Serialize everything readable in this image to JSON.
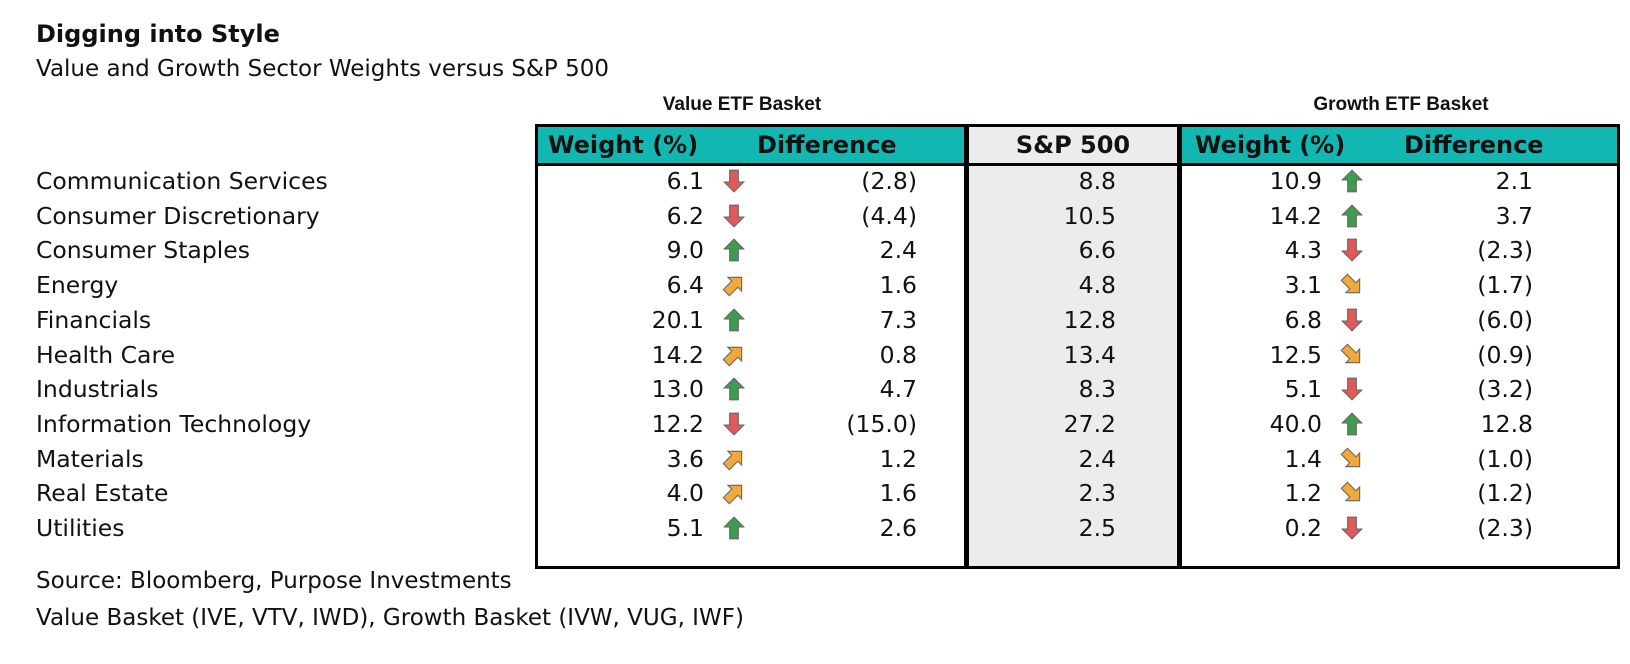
{
  "title": "Digging into Style",
  "subtitle": "Value and Growth Sector Weights versus S&P 500",
  "groups": {
    "value": "Value ETF Basket",
    "growth": "Growth ETF Basket"
  },
  "headers": {
    "value_weight": "Weight (%)",
    "value_diff": "Difference",
    "sp500": "S&P 500",
    "growth_weight": "Weight (%)",
    "growth_diff": "Difference"
  },
  "colors": {
    "header_teal": "#13b7b2",
    "sp_shade": "#ececec",
    "up": "#3f9b4e",
    "down": "#e05a5a",
    "diag": "#f2a93b"
  },
  "rows": [
    {
      "sector": "Communication Services",
      "v_weight": "6.1",
      "v_arrow": "down",
      "v_diff": "(2.8)",
      "sp": "8.8",
      "g_weight": "10.9",
      "g_arrow": "up",
      "g_diff": "2.1"
    },
    {
      "sector": "Consumer Discretionary",
      "v_weight": "6.2",
      "v_arrow": "down",
      "v_diff": "(4.4)",
      "sp": "10.5",
      "g_weight": "14.2",
      "g_arrow": "up",
      "g_diff": "3.7"
    },
    {
      "sector": "Consumer Staples",
      "v_weight": "9.0",
      "v_arrow": "up",
      "v_diff": "2.4",
      "sp": "6.6",
      "g_weight": "4.3",
      "g_arrow": "down",
      "g_diff": "(2.3)"
    },
    {
      "sector": "Energy",
      "v_weight": "6.4",
      "v_arrow": "up-right",
      "v_diff": "1.6",
      "sp": "4.8",
      "g_weight": "3.1",
      "g_arrow": "down-right",
      "g_diff": "(1.7)"
    },
    {
      "sector": "Financials",
      "v_weight": "20.1",
      "v_arrow": "up",
      "v_diff": "7.3",
      "sp": "12.8",
      "g_weight": "6.8",
      "g_arrow": "down",
      "g_diff": "(6.0)"
    },
    {
      "sector": "Health Care",
      "v_weight": "14.2",
      "v_arrow": "up-right",
      "v_diff": "0.8",
      "sp": "13.4",
      "g_weight": "12.5",
      "g_arrow": "down-right",
      "g_diff": "(0.9)"
    },
    {
      "sector": "Industrials",
      "v_weight": "13.0",
      "v_arrow": "up",
      "v_diff": "4.7",
      "sp": "8.3",
      "g_weight": "5.1",
      "g_arrow": "down",
      "g_diff": "(3.2)"
    },
    {
      "sector": "Information Technology",
      "v_weight": "12.2",
      "v_arrow": "down",
      "v_diff": "(15.0)",
      "sp": "27.2",
      "g_weight": "40.0",
      "g_arrow": "up",
      "g_diff": "12.8"
    },
    {
      "sector": "Materials",
      "v_weight": "3.6",
      "v_arrow": "up-right",
      "v_diff": "1.2",
      "sp": "2.4",
      "g_weight": "1.4",
      "g_arrow": "down-right",
      "g_diff": "(1.0)"
    },
    {
      "sector": "Real Estate",
      "v_weight": "4.0",
      "v_arrow": "up-right",
      "v_diff": "1.6",
      "sp": "2.3",
      "g_weight": "1.2",
      "g_arrow": "down-right",
      "g_diff": "(1.2)"
    },
    {
      "sector": "Utilities",
      "v_weight": "5.1",
      "v_arrow": "up",
      "v_diff": "2.6",
      "sp": "2.5",
      "g_weight": "0.2",
      "g_arrow": "down",
      "g_diff": "(2.3)"
    }
  ],
  "footnotes": {
    "source": "Source: Bloomberg, Purpose Investments",
    "baskets": "Value Basket (IVE, VTV, IWD), Growth Basket (IVW, VUG, IWF)"
  }
}
